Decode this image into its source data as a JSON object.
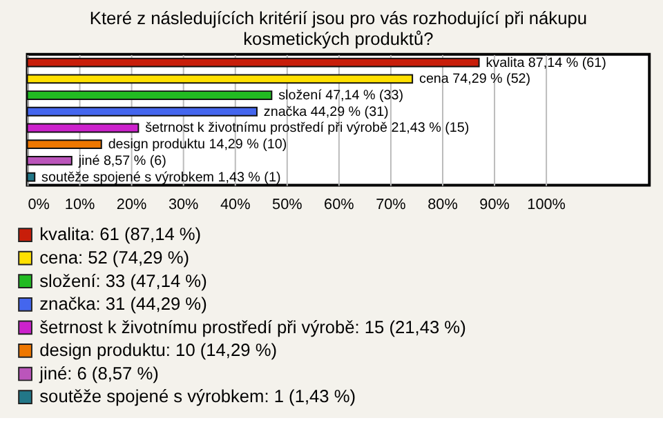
{
  "chart_data": {
    "type": "bar",
    "orientation": "horizontal",
    "title": "Které z následujících kritérií jsou pro vás rozhodující při nákupu kosmetických produktů?",
    "categories": [
      null,
      null,
      null,
      null,
      null,
      null,
      null,
      null
    ],
    "series": [
      {
        "name": "kvalita: 61 (87,14 %)",
        "color": "#c81e0a",
        "values": [
          87.14,
          null,
          null,
          null,
          null,
          null,
          null,
          null
        ],
        "value_labels": [
          "kvalita 87,14 % (61)",
          null,
          null,
          null,
          null,
          null,
          null,
          null
        ]
      },
      {
        "name": "cena: 52 (74,29 %)",
        "color": "#ffe000",
        "values": [
          null,
          74.29,
          null,
          null,
          null,
          null,
          null,
          null
        ],
        "value_labels": [
          null,
          "cena 74,29 % (52)",
          null,
          null,
          null,
          null,
          null,
          null
        ]
      },
      {
        "name": "složení: 33 (47,14 %)",
        "color": "#22bb22",
        "values": [
          null,
          null,
          47.14,
          null,
          null,
          null,
          null,
          null
        ],
        "value_labels": [
          null,
          null,
          "složení 47,14 % (33)",
          null,
          null,
          null,
          null,
          null
        ]
      },
      {
        "name": "značka: 31 (44,29 %)",
        "color": "#4466ee",
        "values": [
          null,
          null,
          null,
          44.29,
          null,
          null,
          null,
          null
        ],
        "value_labels": [
          null,
          null,
          null,
          "značka 44,29 % (31)",
          null,
          null,
          null,
          null
        ]
      },
      {
        "name": "šetrnost k životnímu prostředí při výrobě: 15 (21,43 %)",
        "color": "#cc22cc",
        "values": [
          null,
          null,
          null,
          null,
          21.43,
          null,
          null,
          null
        ],
        "value_labels": [
          null,
          null,
          null,
          null,
          "šetrnost k životnímu prostředí při výrobě 21,43 % (15)",
          null,
          null,
          null
        ]
      },
      {
        "name": "design produktu: 10 (14,29 %)",
        "color": "#ee7700",
        "values": [
          null,
          null,
          null,
          null,
          null,
          14.29,
          null,
          null
        ],
        "value_labels": [
          null,
          null,
          null,
          null,
          null,
          "design produktu 14,29 % (10)",
          null,
          null
        ]
      },
      {
        "name": "jiné: 6 (8,57 %)",
        "color": "#bb55bb",
        "values": [
          null,
          null,
          null,
          null,
          null,
          null,
          8.57,
          null
        ],
        "value_labels": [
          null,
          null,
          null,
          null,
          null,
          null,
          "jiné 8,57 % (6)",
          null
        ]
      },
      {
        "name": "soutěže spojené s výrobkem: 1 (1,43 %)",
        "color": "#227788",
        "values": [
          null,
          null,
          null,
          null,
          null,
          null,
          null,
          1.43
        ],
        "value_labels": [
          null,
          null,
          null,
          null,
          null,
          null,
          null,
          "soutěže spojené s výrobkem 1,43 % (1)"
        ]
      }
    ],
    "xlim": [
      0,
      120
    ],
    "xticks": [
      {
        "value": 0,
        "label": "0%"
      },
      {
        "value": 10,
        "label": "10%"
      },
      {
        "value": 20,
        "label": "20%"
      },
      {
        "value": 30,
        "label": "30%"
      },
      {
        "value": 40,
        "label": "40%"
      },
      {
        "value": 50,
        "label": "50%"
      },
      {
        "value": 60,
        "label": "60%"
      },
      {
        "value": 70,
        "label": "70%"
      },
      {
        "value": 80,
        "label": "80%"
      },
      {
        "value": 90,
        "label": "90%"
      },
      {
        "value": 100,
        "label": "100%"
      }
    ],
    "grid": "x",
    "legend": "bottom"
  }
}
